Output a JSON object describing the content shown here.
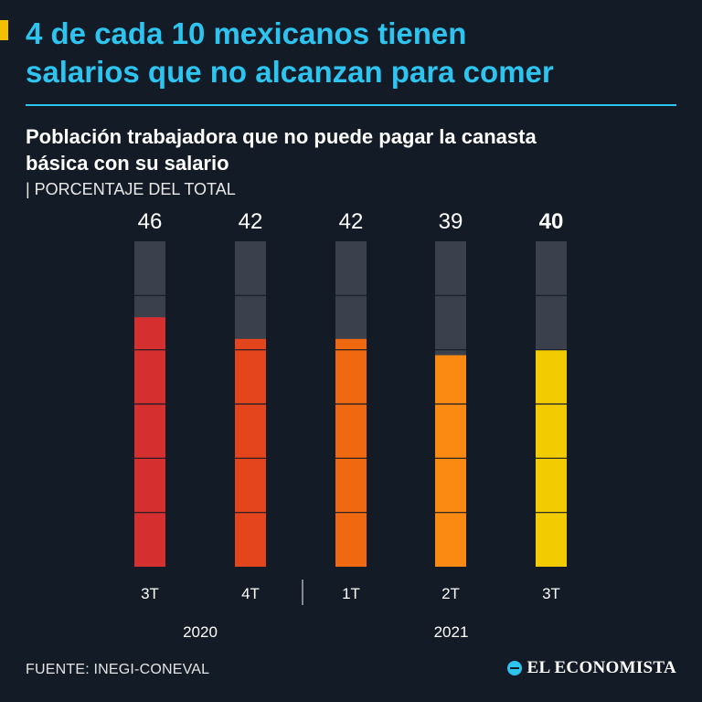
{
  "header": {
    "title_line1": "4 de cada 10 mexicanos tienen",
    "title_line2": "salarios que no alcanzan para comer",
    "accent_color": "#f2c000",
    "title_color": "#2ec4f0"
  },
  "subtitle": {
    "line1": "Población trabajadora que no puede pagar la canasta",
    "line2": "básica con su salario",
    "unit": "| PORCENTAJE DEL TOTAL"
  },
  "chart_data": {
    "type": "bar",
    "categories": [
      "3T",
      "4T",
      "1T",
      "2T",
      "3T"
    ],
    "years": [
      {
        "label": "2020",
        "categories": [
          "3T",
          "4T"
        ]
      },
      {
        "label": "2021",
        "categories": [
          "1T",
          "2T",
          "3T"
        ]
      }
    ],
    "values": [
      46,
      42,
      42,
      39,
      40
    ],
    "ylim": [
      0,
      100
    ],
    "highlight_index": 4,
    "bar_colors": [
      "#d62f2f",
      "#e5451d",
      "#f06910",
      "#fb8a12",
      "#f2cc00"
    ],
    "background_bar_color": "#3a414d",
    "grid": "horizontal segments every 10"
  },
  "footer": {
    "source": "FUENTE: INEGI-CONEVAL",
    "brand": "EL ECONOMISTA"
  }
}
